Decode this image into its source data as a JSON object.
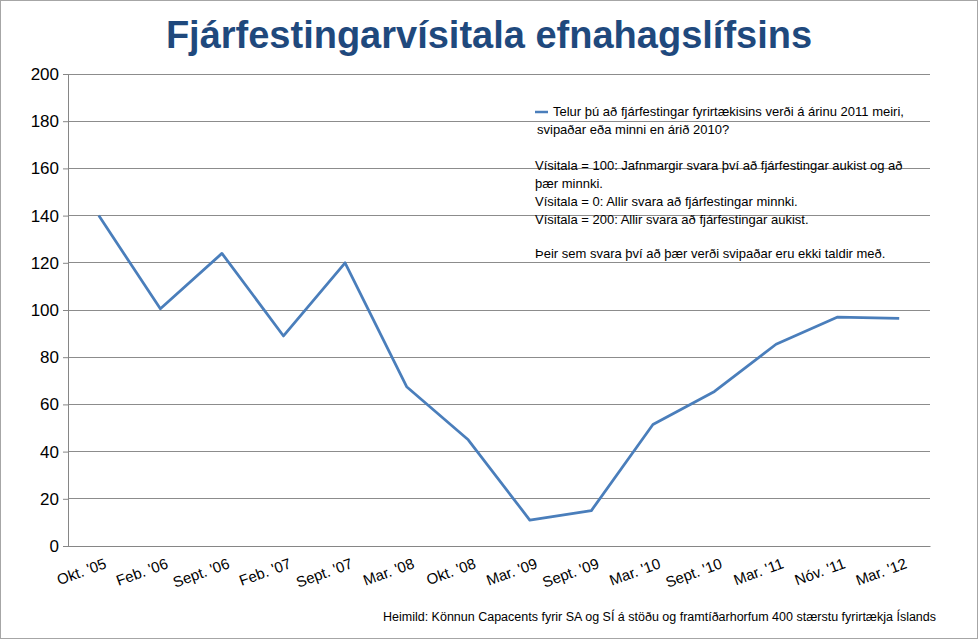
{
  "chart_data": {
    "type": "line",
    "title": "Fjárfestingarvísitala efnahagslífsins",
    "categories": [
      "Okt. '05",
      "Feb. '06",
      "Sept. '06",
      "Feb. '07",
      "Sept. '07",
      "Mar. '08",
      "Okt. '08",
      "Mar. '09",
      "Sept. '09",
      "Mar. '10",
      "Sept. '10",
      "Mar. '11",
      "Nóv. '11",
      "Mar. '12"
    ],
    "series": [
      {
        "name": "Telur þú að fjárfestingar fyrirtækisins verði á árinu 2011 meiri, svipaðar eða minni en árið 2010?",
        "color": "#4a7ebb",
        "values": [
          140,
          100.5,
          124,
          89,
          120,
          67.5,
          45,
          11,
          15,
          51.5,
          65.5,
          85.5,
          97,
          96.5
        ]
      }
    ],
    "annotations": [
      "Vísitala = 100:  Jafnmargir svara  því að fjárfestingar aukist og að þær minnki.",
      "Vísitala = 0:  Allir svara að fjárfestingar minnki.",
      "Vísitala = 200:  Allir svara að fjárfestingar aukist.",
      "Þeir sem svara því að þær verði svipaðar eru ekki taldir með."
    ],
    "source": "Heimild: Könnun Capacents fyrir SA og SÍ á stöðu og framtíðarhorfum 400 stærstu fyrirtækja Íslands",
    "ylim": [
      0,
      200
    ],
    "yticks": [
      0,
      20,
      40,
      60,
      80,
      100,
      120,
      140,
      160,
      180,
      200
    ],
    "grid": true,
    "legend": "top-right"
  }
}
